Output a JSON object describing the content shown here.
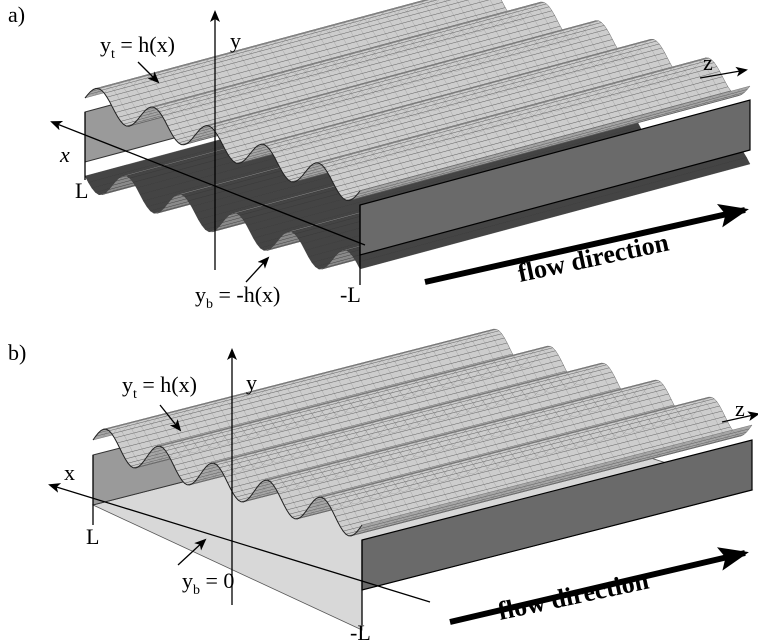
{
  "panel_a": {
    "label": "a)",
    "top_surface": {
      "base": "y",
      "sub": "t",
      "rest": " = h(x)"
    },
    "y_axis": "y",
    "z_axis": "z",
    "x_axis": "x",
    "left_bound": "L",
    "right_bound": "-L",
    "bottom_surface": {
      "base": "y",
      "sub": "b",
      "rest": " = -h(x)"
    },
    "flow": "flow direction"
  },
  "panel_b": {
    "label": "b)",
    "top_surface": {
      "base": "y",
      "sub": "t",
      "rest": " = h(x)"
    },
    "y_axis": "y",
    "z_axis": "z",
    "x_axis": "x",
    "left_bound": "L",
    "right_bound": "-L",
    "bottom_surface": {
      "base": "y",
      "sub": "b",
      "rest": " = 0"
    },
    "flow": "flow direction"
  }
}
